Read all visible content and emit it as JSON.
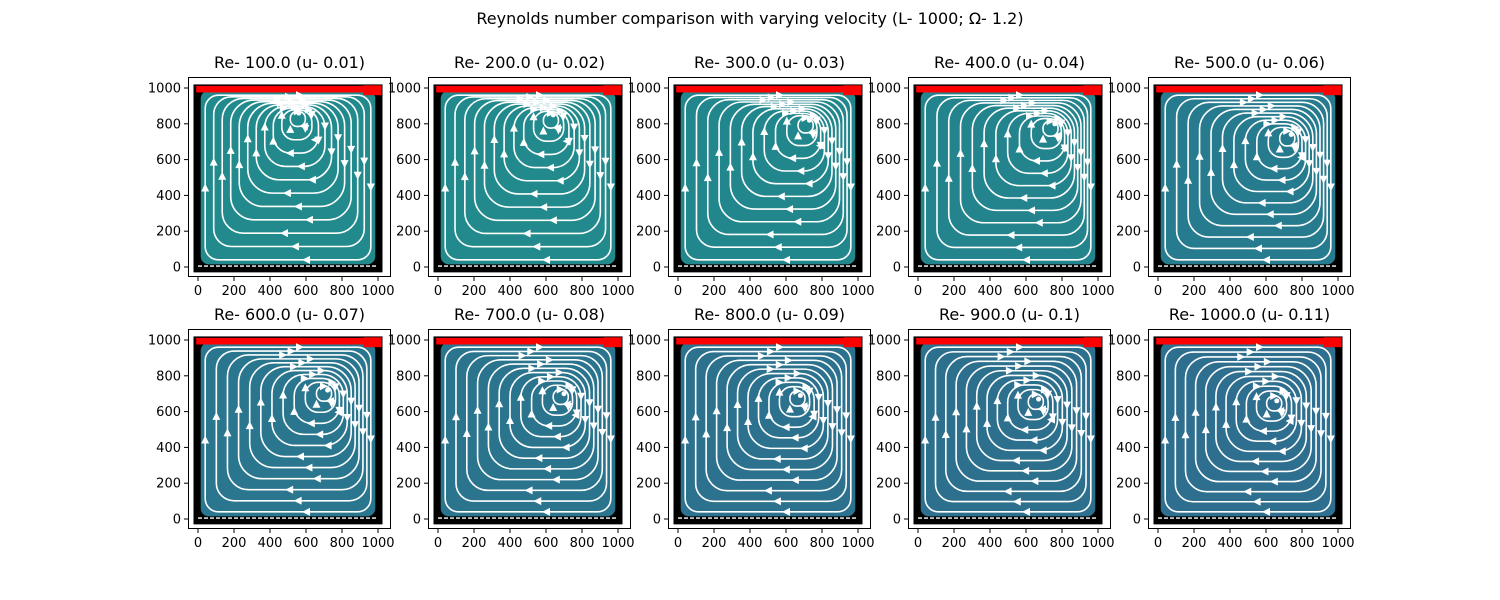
{
  "figure": {
    "title": "Reynolds number comparison with varying velocity (L- 1000; Ω- 1.2)"
  },
  "style": {
    "background": "#ffffff",
    "frame_color": "#000000",
    "lid_color": "#ff0000",
    "streamline_color": "#ffffff",
    "grid": false
  },
  "chart_data": [
    {
      "type": "streamplot",
      "title": "Re- 100.0 (u- 0.01)",
      "reynolds": 100.0,
      "u": 0.01,
      "fill": "#228a8c",
      "vortex_center": [
        560,
        860
      ],
      "xlim": [
        0,
        1000
      ],
      "ylim": [
        0,
        1000
      ],
      "xticks": [
        "0",
        "200",
        "400",
        "600",
        "800",
        "1000"
      ],
      "yticks": [
        "0",
        "200",
        "400",
        "600",
        "800",
        "1000"
      ]
    },
    {
      "type": "streamplot",
      "title": "Re- 200.0 (u- 0.02)",
      "reynolds": 200.0,
      "u": 0.02,
      "fill": "#228a8c",
      "vortex_center": [
        640,
        850
      ],
      "xlim": [
        0,
        1000
      ],
      "ylim": [
        0,
        1000
      ],
      "xticks": [
        "0",
        "200",
        "400",
        "600",
        "800",
        "1000"
      ],
      "yticks": [
        "0",
        "200",
        "400",
        "600",
        "800",
        "1000"
      ]
    },
    {
      "type": "streamplot",
      "title": "Re- 300.0 (u- 0.03)",
      "reynolds": 300.0,
      "u": 0.03,
      "fill": "#22878d",
      "vortex_center": [
        730,
        820
      ],
      "xlim": [
        0,
        1000
      ],
      "ylim": [
        0,
        1000
      ],
      "xticks": [
        "0",
        "200",
        "400",
        "600",
        "800",
        "1000"
      ],
      "yticks": [
        "0",
        "200",
        "400",
        "600",
        "800",
        "1000"
      ]
    },
    {
      "type": "streamplot",
      "title": "Re- 400.0 (u- 0.04)",
      "reynolds": 400.0,
      "u": 0.04,
      "fill": "#24848d",
      "vortex_center": [
        760,
        800
      ],
      "xlim": [
        0,
        1000
      ],
      "ylim": [
        0,
        1000
      ],
      "xticks": [
        "0",
        "200",
        "400",
        "600",
        "800",
        "1000"
      ],
      "yticks": [
        "0",
        "200",
        "400",
        "600",
        "800",
        "1000"
      ]
    },
    {
      "type": "streamplot",
      "title": "Re- 500.0 (u- 0.06)",
      "reynolds": 500.0,
      "u": 0.06,
      "fill": "#277b8e",
      "vortex_center": [
        740,
        740
      ],
      "xlim": [
        0,
        1000
      ],
      "ylim": [
        0,
        1000
      ],
      "xticks": [
        "0",
        "200",
        "400",
        "600",
        "800",
        "1000"
      ],
      "yticks": [
        "0",
        "200",
        "400",
        "600",
        "800",
        "1000"
      ]
    },
    {
      "type": "streamplot",
      "title": "Re- 600.0 (u- 0.07)",
      "reynolds": 600.0,
      "u": 0.07,
      "fill": "#2a768e",
      "vortex_center": [
        720,
        720
      ],
      "xlim": [
        0,
        1000
      ],
      "ylim": [
        0,
        1000
      ],
      "xticks": [
        "0",
        "200",
        "400",
        "600",
        "800",
        "1000"
      ],
      "yticks": [
        "0",
        "200",
        "400",
        "600",
        "800",
        "1000"
      ]
    },
    {
      "type": "streamplot",
      "title": "Re- 700.0 (u- 0.08)",
      "reynolds": 700.0,
      "u": 0.08,
      "fill": "#2b748e",
      "vortex_center": [
        700,
        700
      ],
      "xlim": [
        0,
        1000
      ],
      "ylim": [
        0,
        1000
      ],
      "xticks": [
        "0",
        "200",
        "400",
        "600",
        "800",
        "1000"
      ],
      "yticks": [
        "0",
        "200",
        "400",
        "600",
        "800",
        "1000"
      ]
    },
    {
      "type": "streamplot",
      "title": "Re- 800.0 (u- 0.09)",
      "reynolds": 800.0,
      "u": 0.09,
      "fill": "#2c728e",
      "vortex_center": [
        680,
        690
      ],
      "xlim": [
        0,
        1000
      ],
      "ylim": [
        0,
        1000
      ],
      "xticks": [
        "0",
        "200",
        "400",
        "600",
        "800",
        "1000"
      ],
      "yticks": [
        "0",
        "200",
        "400",
        "600",
        "800",
        "1000"
      ]
    },
    {
      "type": "streamplot",
      "title": "Re- 900.0 (u- 0.1)",
      "reynolds": 900.0,
      "u": 0.1,
      "fill": "#2d708e",
      "vortex_center": [
        670,
        670
      ],
      "xlim": [
        0,
        1000
      ],
      "ylim": [
        0,
        1000
      ],
      "xticks": [
        "0",
        "200",
        "400",
        "600",
        "800",
        "1000"
      ],
      "yticks": [
        "0",
        "200",
        "400",
        "600",
        "800",
        "1000"
      ]
    },
    {
      "type": "streamplot",
      "title": "Re- 1000.0 (u- 0.11)",
      "reynolds": 1000.0,
      "u": 0.11,
      "fill": "#2e6e8e",
      "vortex_center": [
        660,
        660
      ],
      "xlim": [
        0,
        1000
      ],
      "ylim": [
        0,
        1000
      ],
      "xticks": [
        "0",
        "200",
        "400",
        "600",
        "800",
        "1000"
      ],
      "yticks": [
        "0",
        "200",
        "400",
        "600",
        "800",
        "1000"
      ]
    }
  ]
}
